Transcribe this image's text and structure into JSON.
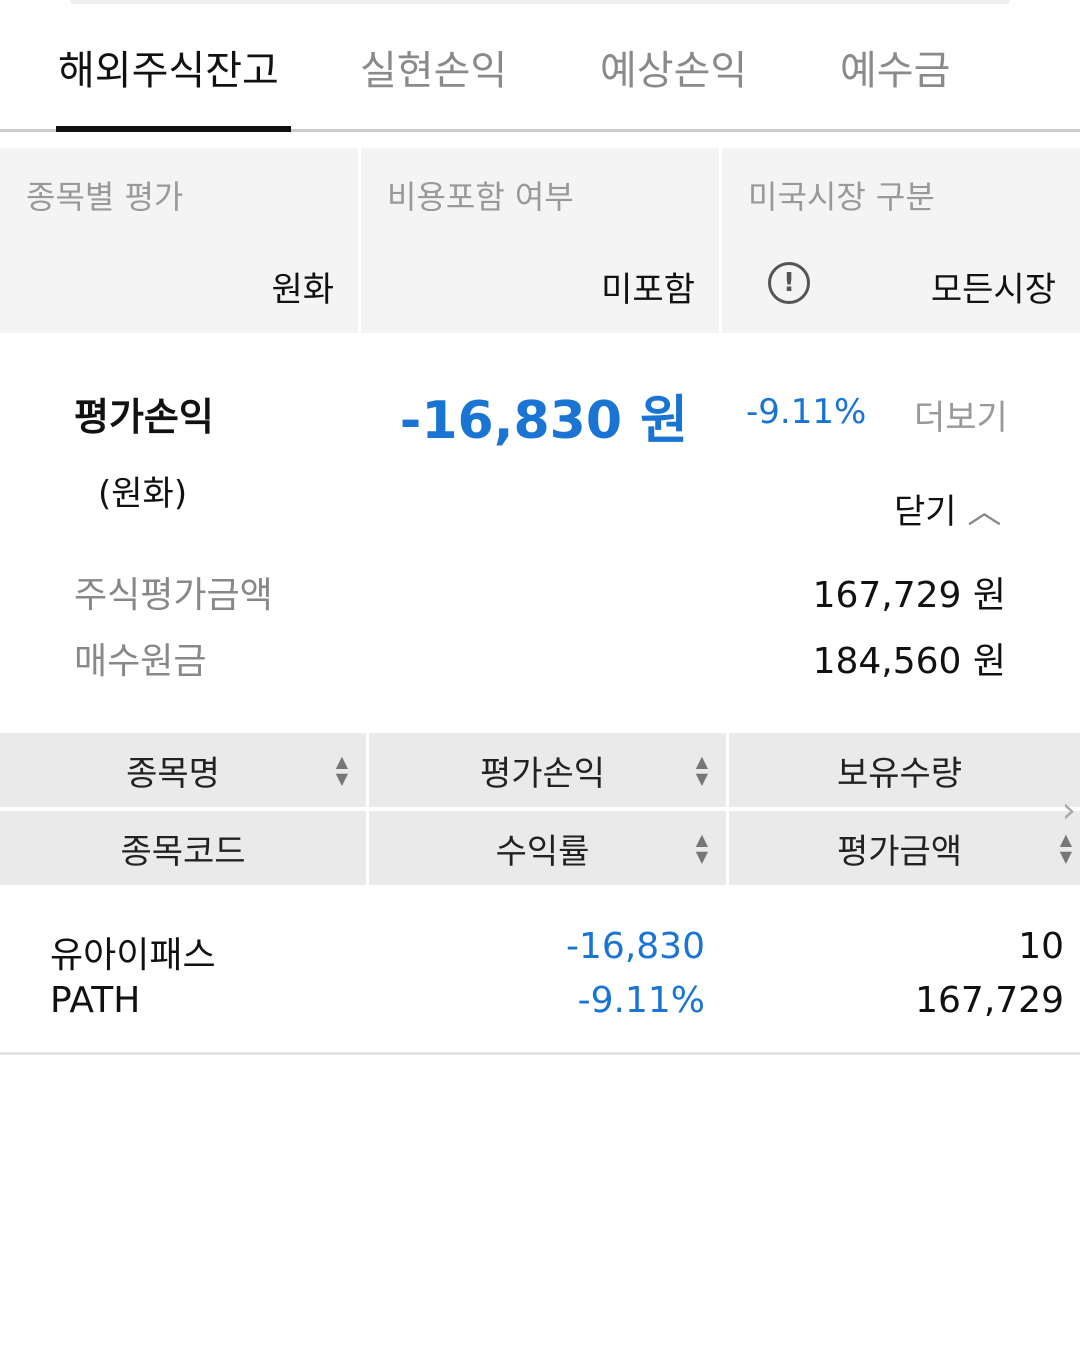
{
  "tabs": [
    {
      "label": "해외주식잔고",
      "active": true
    },
    {
      "label": "실현손익"
    },
    {
      "label": "예상손익"
    },
    {
      "label": "예수금"
    }
  ],
  "filters": [
    {
      "label": "종목별 평가",
      "value": "원화"
    },
    {
      "label": "비용포함 여부",
      "value": "미포함"
    },
    {
      "label": "미국시장 구분",
      "value": "모든시장",
      "icon": "info-icon"
    }
  ],
  "summary": {
    "label": "평가손익",
    "sublabel": "(원화)",
    "value": "-16,830 원",
    "percent": "-9.11%",
    "more": "더보기",
    "close": "닫기",
    "rows": [
      {
        "label": "주식평가금액",
        "value": "167,729 원"
      },
      {
        "label": "매수원금",
        "value": "184,560 원"
      }
    ]
  },
  "table": {
    "headers_row1": [
      "종목명",
      "평가손익",
      "보유수량"
    ],
    "headers_row2": [
      "종목코드",
      "수익률",
      "평가금액"
    ],
    "rows": [
      {
        "name": "유아이패스",
        "code": "PATH",
        "pl": "-16,830",
        "rate": "-9.11%",
        "qty": "10",
        "eval": "167,729"
      }
    ]
  },
  "colors": {
    "accent": "#1a74d4",
    "negative": "#1a74d4"
  }
}
